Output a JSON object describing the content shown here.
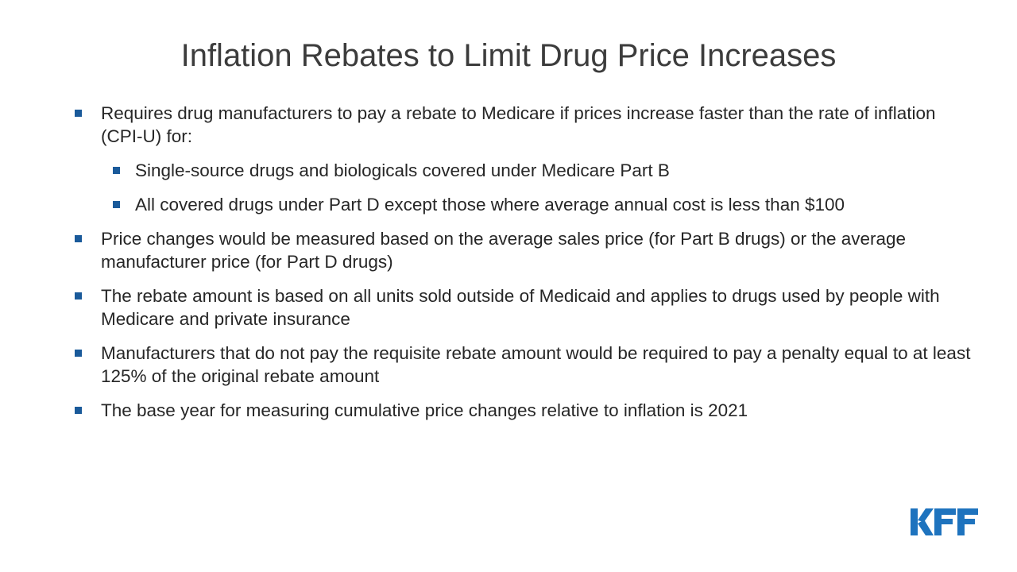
{
  "slide": {
    "title": "Inflation Rebates to Limit Drug Price Increases",
    "bullets": [
      {
        "level": 1,
        "text": "Requires drug manufacturers to pay a rebate to Medicare if prices increase faster than the rate of inflation (CPI-U) for:"
      },
      {
        "level": 2,
        "text": "Single-source drugs and biologicals covered under Medicare Part B"
      },
      {
        "level": 2,
        "text": "All covered drugs under Part D except those where average annual cost is less than $100"
      },
      {
        "level": 1,
        "text": "Price changes would be measured based on the average sales price (for Part B drugs) or the average manufacturer price (for Part D drugs)"
      },
      {
        "level": 1,
        "text": "The rebate amount is based on all units sold outside of Medicaid and applies to drugs used by people with Medicare and private insurance"
      },
      {
        "level": 1,
        "text": "Manufacturers that do not pay the requisite rebate amount would be required to pay a penalty equal to at least 125% of the original rebate amount"
      },
      {
        "level": 1,
        "text": "The base year for measuring cumulative price changes relative to inflation is 2021"
      }
    ],
    "logo": {
      "text": "KFF",
      "icon": "kff-logo-icon"
    },
    "colors": {
      "bullet": "#1a5a9a",
      "logo": "#1e73be",
      "title": "#3c3c3c",
      "body": "#262626"
    }
  }
}
